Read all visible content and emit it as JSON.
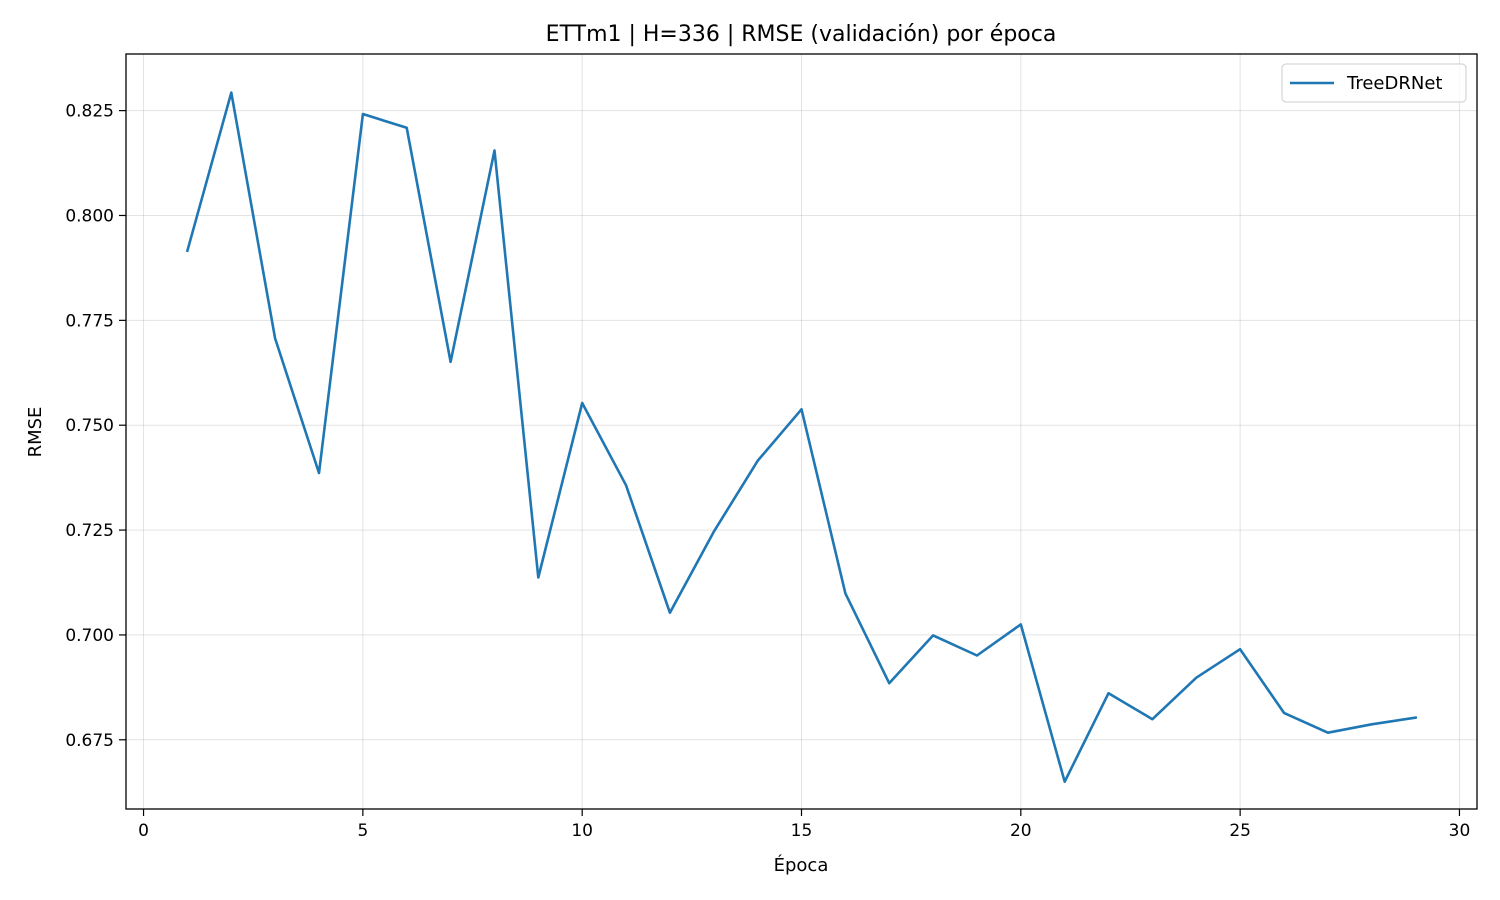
{
  "chart_data": {
    "type": "line",
    "title": "ETTm1 | H=336 | RMSE (validación) por época",
    "xlabel": "Época",
    "ylabel": "RMSE",
    "xlim": [
      -0.4,
      30.4
    ],
    "ylim": [
      0.6585,
      0.8385
    ],
    "xticks": [
      0,
      5,
      10,
      15,
      20,
      25,
      30
    ],
    "yticks": [
      0.675,
      0.7,
      0.725,
      0.75,
      0.775,
      0.8,
      0.825
    ],
    "ytick_labels": [
      "0.675",
      "0.700",
      "0.725",
      "0.750",
      "0.775",
      "0.800",
      "0.825"
    ],
    "grid": true,
    "legend_position": "top-right",
    "series": [
      {
        "name": "TreeDRNet",
        "color": "#1f77b4",
        "x": [
          1,
          2,
          3,
          4,
          5,
          6,
          7,
          8,
          9,
          10,
          11,
          12,
          13,
          14,
          15,
          16,
          17,
          18,
          19,
          20,
          21,
          22,
          23,
          24,
          25,
          26,
          27,
          28,
          29
        ],
        "y": [
          0.7916,
          0.8293,
          0.7707,
          0.7386,
          0.8242,
          0.8209,
          0.7651,
          0.8155,
          0.7137,
          0.7553,
          0.7357,
          0.7053,
          0.7246,
          0.7415,
          0.7538,
          0.7099,
          0.6885,
          0.6999,
          0.6951,
          0.7025,
          0.665,
          0.6861,
          0.6799,
          0.6898,
          0.6966,
          0.6814,
          0.6767,
          0.6787,
          0.6803
        ]
      }
    ]
  }
}
